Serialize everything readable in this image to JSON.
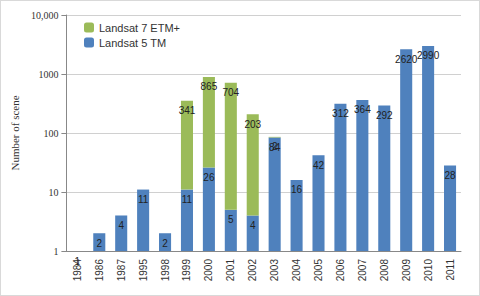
{
  "chart_data": {
    "type": "bar",
    "y_label": "Number of scene",
    "categories": [
      "1984",
      "1986",
      "1987",
      "1995",
      "1998",
      "1999",
      "2000",
      "2001",
      "2002",
      "2003",
      "2004",
      "2005",
      "2006",
      "2007",
      "2008",
      "2009",
      "2010",
      "2011"
    ],
    "series": [
      {
        "name": "Landsat 5 TM",
        "color": "#4f81bd",
        "values": [
          1,
          2,
          4,
          11,
          2,
          11,
          26,
          5,
          4,
          84,
          16,
          42,
          312,
          364,
          292,
          2620,
          2990,
          28
        ]
      },
      {
        "name": "Landsat 7 ETM+",
        "color": "#9bbb59",
        "values": [
          null,
          null,
          null,
          null,
          null,
          341,
          865,
          704,
          203,
          2,
          null,
          null,
          null,
          null,
          null,
          null,
          null,
          null
        ]
      }
    ],
    "stacked": true,
    "log": "y",
    "ylim": [
      1,
      10000
    ],
    "yticks": [
      1,
      10,
      100,
      1000,
      {
        "value": 10000,
        "label": "10,000"
      }
    ],
    "grid": true,
    "legend": "top-left",
    "data_labels": true
  }
}
